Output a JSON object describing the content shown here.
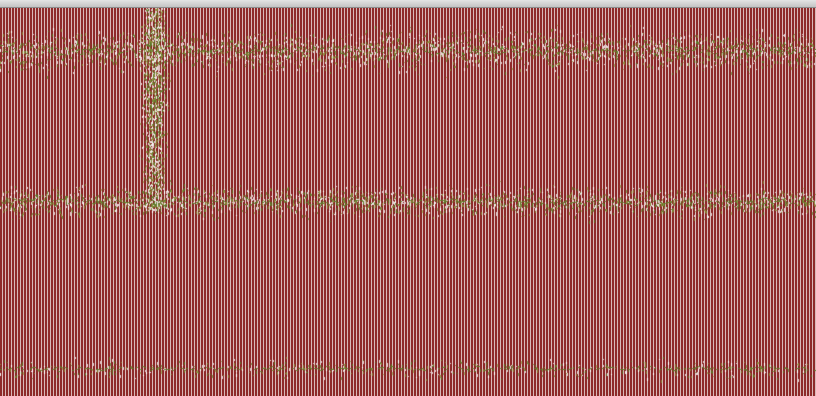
{
  "colors": {
    "stripe_dark": "#8e2a2a",
    "stripe_light": "#d9b8b8",
    "background": "#7a1c1c",
    "band_green": "#5f7a2a",
    "band_olive": "#8a8a3a",
    "speck_white": "#f4eeee",
    "border": "#c4c4c4"
  },
  "noise_bands": [
    {
      "name": "upper-band",
      "center": 0.11,
      "spread": 0.08,
      "density": 0.55
    },
    {
      "name": "middle-band",
      "center": 0.5,
      "spread": 0.06,
      "density": 0.5
    },
    {
      "name": "lower-sparse",
      "center": 0.93,
      "spread": 0.04,
      "density": 0.12
    }
  ],
  "column_burst": {
    "center": 0.19,
    "spread": 0.025,
    "top": 0.0,
    "bottom": 0.52
  }
}
